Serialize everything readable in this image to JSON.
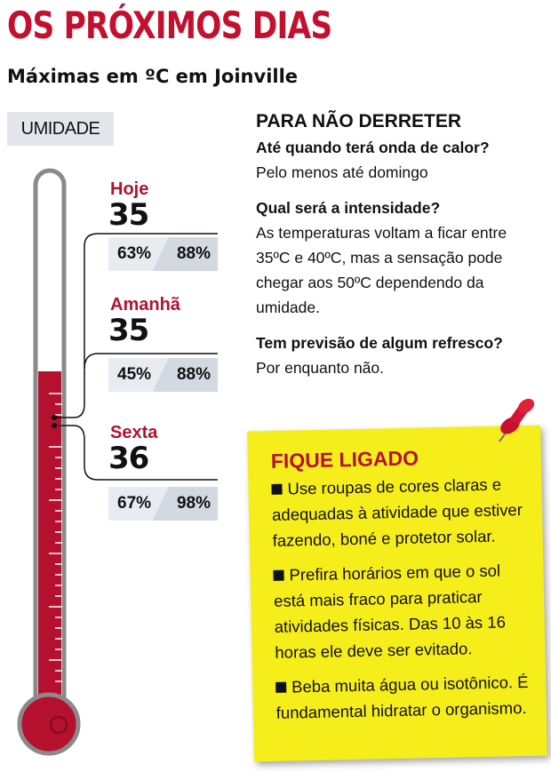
{
  "header": {
    "title": "OS PRÓXIMOS DIAS",
    "subtitle": "Máximas em ºC em Joinville"
  },
  "humidity_label": "UMIDADE",
  "days": [
    {
      "name": "Hoje",
      "max": "35",
      "humidity_min": "63%",
      "humidity_max": "88%"
    },
    {
      "name": "Amanhã",
      "max": "35",
      "humidity_min": "45%",
      "humidity_max": "88%"
    },
    {
      "name": "Sexta",
      "max": "36",
      "humidity_min": "67%",
      "humidity_max": "98%"
    }
  ],
  "info": {
    "title": "PARA NÃO DERRETER",
    "qa": [
      {
        "q": "Até quando terá onda de calor?",
        "a": "Pelo menos até domingo"
      },
      {
        "q": "Qual será a intensidade?",
        "a": "As temperaturas voltam a ficar entre 35ºC e 40ºC, mas a sensação pode chegar aos 50ºC dependendo da umidade."
      },
      {
        "q": "Tem previsão de algum refresco?",
        "a": "Por enquanto não."
      }
    ]
  },
  "note": {
    "title": "FIQUE LIGADO",
    "tips": [
      "Use roupas de cores claras e adequadas à atividade que estiver fazendo, boné e protetor solar.",
      "Prefira horários em que o sol está mais fraco para praticar atividades físicas. Das 10 às 16 horas ele deve ser evitado.",
      "Beba muita água ou isotônico. É fundamental hidratar o organismo."
    ]
  },
  "colors": {
    "red": "#b5112f",
    "yellow": "#f6ee1b",
    "panel": "#e3e7ec"
  }
}
